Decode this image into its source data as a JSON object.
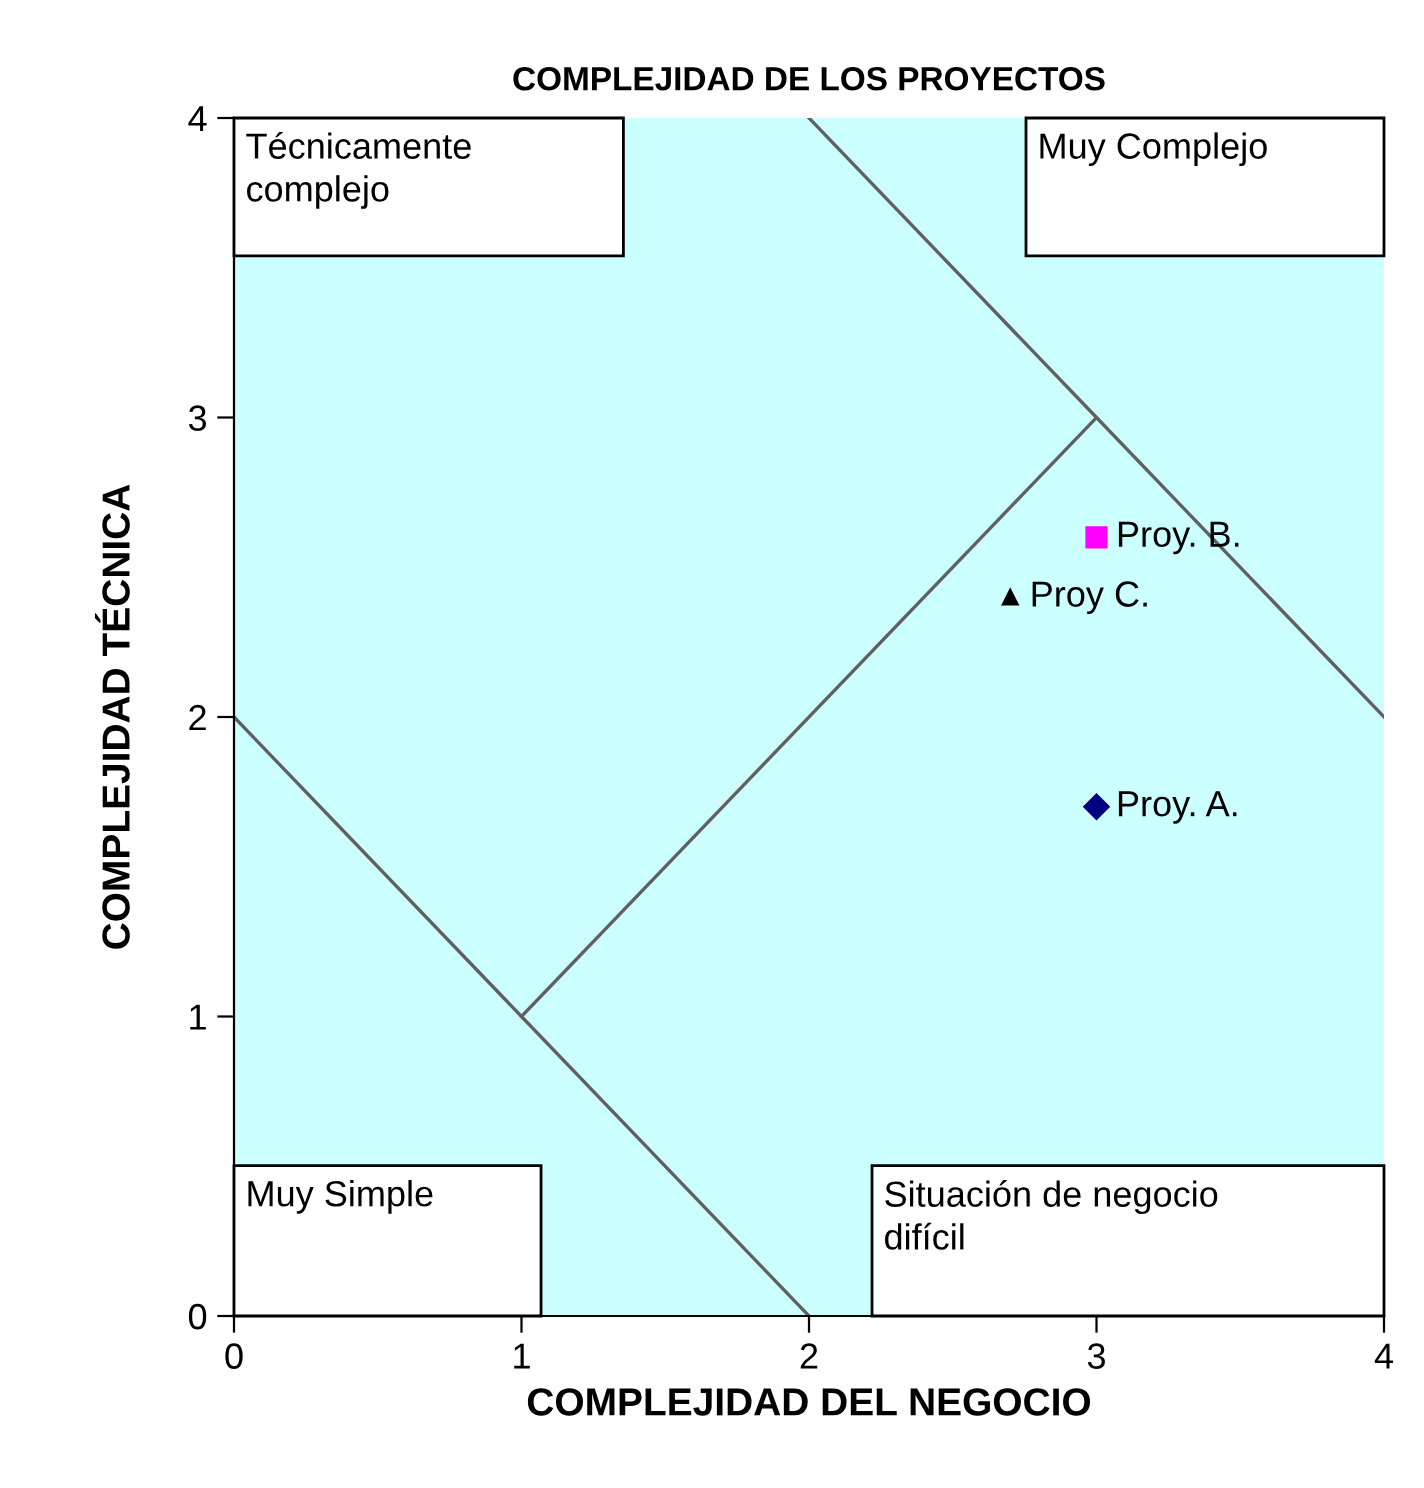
{
  "chart_data": {
    "type": "scatter",
    "title": "COMPLEJIDAD DE LOS PROYECTOS",
    "xlabel": "COMPLEJIDAD DEL NEGOCIO",
    "ylabel": "COMPLEJIDAD TÉCNICA",
    "xlim": [
      0,
      4
    ],
    "ylim": [
      0,
      4
    ],
    "xticks": [
      0,
      1,
      2,
      3,
      4
    ],
    "yticks": [
      0,
      1,
      2,
      3,
      4
    ],
    "grid": false,
    "legend": false,
    "series": [
      {
        "type": "line",
        "color": "#606060",
        "x": [
          0,
          1,
          2
        ],
        "values": [
          2,
          1,
          0
        ],
        "marker": "none"
      },
      {
        "type": "line",
        "color": "#606060",
        "x": [
          1,
          3
        ],
        "values": [
          1,
          3
        ],
        "marker": "none"
      },
      {
        "type": "line",
        "color": "#606060",
        "x": [
          2,
          3,
          4
        ],
        "values": [
          4,
          3,
          2
        ],
        "marker": "none"
      },
      {
        "name": "Proy. B.",
        "color": "#ff00ff",
        "x": [
          3.0
        ],
        "values": [
          2.6
        ],
        "marker": "square"
      },
      {
        "name": "Proy C.",
        "color": "#000000",
        "x": [
          2.7
        ],
        "values": [
          2.4
        ],
        "marker": "triangle"
      },
      {
        "name": "Proy. A.",
        "color": "#000080",
        "x": [
          3.0
        ],
        "values": [
          1.7
        ],
        "marker": "diamond"
      }
    ],
    "annotations": [
      "Técnicamente\ncomplejo",
      "Muy Complejo",
      "Muy Simple",
      "Situación de negocio\ndifícil"
    ]
  }
}
